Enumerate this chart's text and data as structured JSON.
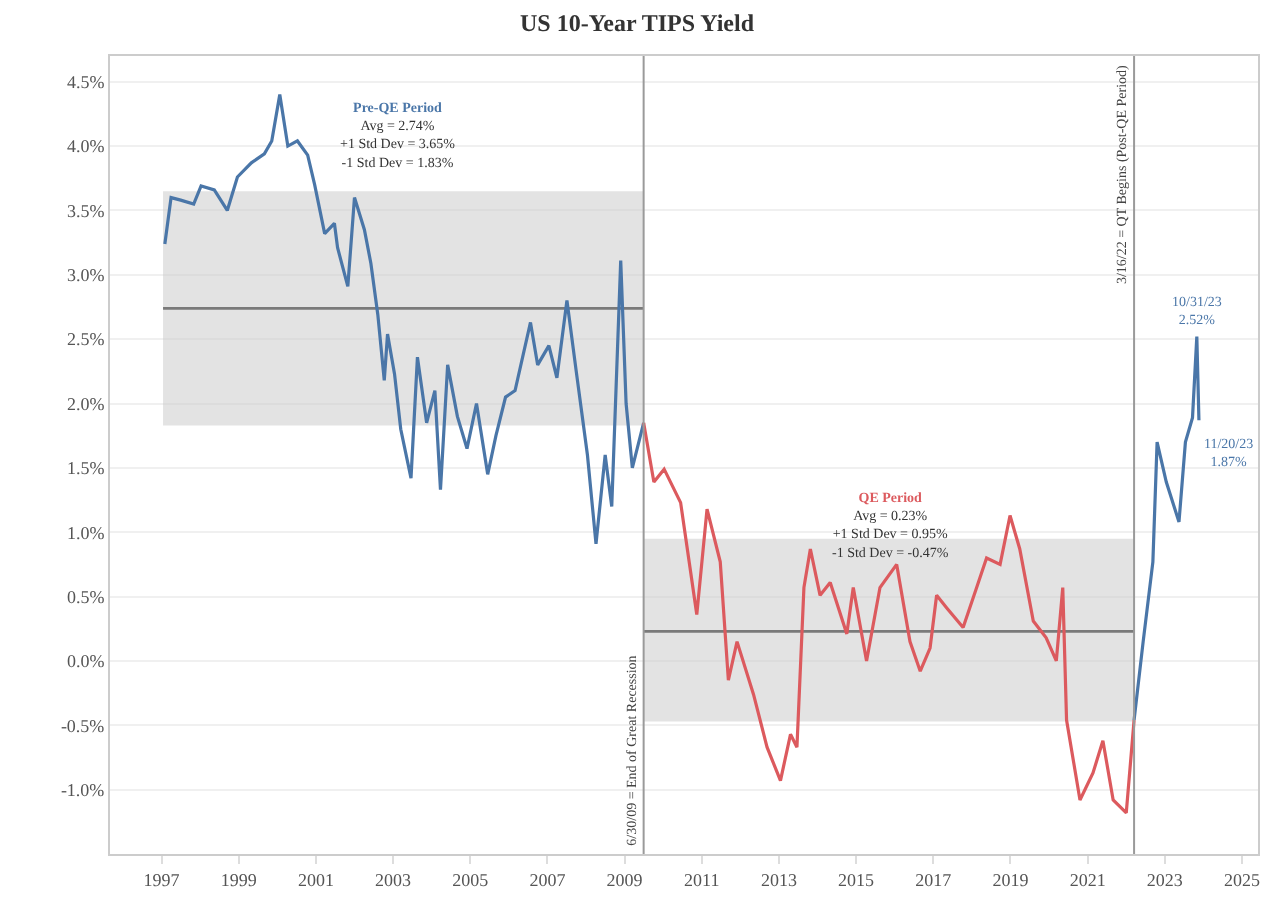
{
  "chart_data": {
    "type": "line",
    "title": "US 10-Year TIPS Yield",
    "series": [
      {
        "color": "#4a76a8",
        "x": [
          "1997-02-01",
          "1997-04-01",
          "1997-07-01",
          "1997-11-01",
          "1998-01-10",
          "1998-05-15",
          "1998-09-15",
          "1998-12-20",
          "1999-05-01",
          "1999-09-01",
          "1999-11-10",
          "2000-01-25",
          "2000-04-10",
          "2000-07-10",
          "2000-10-15",
          "2000-12-20",
          "2001-03-25",
          "2001-06-25",
          "2001-07-25",
          "2001-10-30",
          "2002-01-01",
          "2002-04-05",
          "2002-06-05",
          "2002-08-10",
          "2002-10-10",
          "2002-11-10",
          "2003-01-15",
          "2003-03-15",
          "2003-06-20",
          "2003-08-20",
          "2003-11-15",
          "2004-02-01",
          "2004-03-25",
          "2004-06-01",
          "2004-09-01",
          "2004-12-01",
          "2005-03-01",
          "2005-06-15",
          "2005-09-01",
          "2005-12-01",
          "2006-03-01",
          "2006-07-25",
          "2006-10-01",
          "2007-01-15",
          "2007-04-01",
          "2007-07-05",
          "2007-10-01",
          "2008-01-15",
          "2008-04-05",
          "2008-07-01",
          "2008-09-01",
          "2008-11-25",
          "2009-01-15",
          "2009-03-15",
          "2009-06-30"
        ],
        "values": [
          3.24,
          3.6,
          3.58,
          3.55,
          3.69,
          3.66,
          3.5,
          3.76,
          3.87,
          3.94,
          4.04,
          4.4,
          4.0,
          4.04,
          3.93,
          3.7,
          3.32,
          3.4,
          3.21,
          2.91,
          3.6,
          3.35,
          3.09,
          2.69,
          2.18,
          2.54,
          2.23,
          1.8,
          1.42,
          2.36,
          1.85,
          2.1,
          1.33,
          2.3,
          1.9,
          1.65,
          2.0,
          1.45,
          1.75,
          2.05,
          2.1,
          2.63,
          2.3,
          2.45,
          2.2,
          2.8,
          2.25,
          1.6,
          0.91,
          1.6,
          1.2,
          3.11,
          2.0,
          1.5,
          1.85
        ]
      },
      {
        "color": "#dc5a5e",
        "x": [
          "2009-06-30",
          "2009-10-05",
          "2010-01-10",
          "2010-06-15",
          "2010-11-15",
          "2011-02-20",
          "2011-06-25",
          "2011-09-10",
          "2011-12-01",
          "2012-05-05",
          "2012-09-10",
          "2013-01-15",
          "2013-04-20",
          "2013-06-20",
          "2013-08-25",
          "2013-10-25",
          "2014-01-25",
          "2014-05-01",
          "2014-10-05",
          "2014-12-05",
          "2015-04-10",
          "2015-08-15",
          "2016-01-20",
          "2016-05-25",
          "2016-08-30",
          "2016-12-01",
          "2017-02-01",
          "2017-05-10",
          "2017-10-10",
          "2018-02-15",
          "2018-05-20",
          "2018-09-25",
          "2018-12-28",
          "2019-03-30",
          "2019-08-05",
          "2019-12-05",
          "2020-03-10",
          "2020-05-10",
          "2020-06-15",
          "2020-10-20",
          "2021-02-20",
          "2021-05-25",
          "2021-08-30",
          "2022-01-01",
          "2022-03-16"
        ],
        "values": [
          1.85,
          1.39,
          1.49,
          1.23,
          0.36,
          1.18,
          0.77,
          -0.15,
          0.15,
          -0.26,
          -0.67,
          -0.93,
          -0.57,
          -0.67,
          0.57,
          0.87,
          0.51,
          0.61,
          0.21,
          0.57,
          0.0,
          0.57,
          0.75,
          0.15,
          -0.08,
          0.1,
          0.51,
          0.41,
          0.26,
          0.57,
          0.8,
          0.75,
          1.13,
          0.87,
          0.31,
          0.18,
          0.0,
          0.57,
          -0.46,
          -1.08,
          -0.87,
          -0.62,
          -1.08,
          -1.18,
          -0.46
        ]
      },
      {
        "color": "#4a76a8",
        "x": [
          "2022-03-16",
          "2022-06-10",
          "2022-09-10",
          "2022-10-20",
          "2023-01-15",
          "2023-05-15",
          "2023-07-15",
          "2023-09-20",
          "2023-10-31",
          "2023-11-20"
        ],
        "values": [
          -0.46,
          0.15,
          0.77,
          1.7,
          1.39,
          1.08,
          1.7,
          1.89,
          2.52,
          1.87
        ]
      },
      {
        "color": "#7a7a7a",
        "x": [
          "1997-01-15",
          "2009-06-30"
        ],
        "values": [
          2.74,
          2.74
        ],
        "lower": [
          1.83,
          1.83
        ],
        "upper": [
          3.65,
          3.65
        ]
      },
      {
        "color": "#7a7a7a",
        "x": [
          "2009-06-30",
          "2022-03-16"
        ],
        "values": [
          0.23,
          0.23
        ],
        "lower": [
          -0.47,
          -0.47
        ],
        "upper": [
          0.95,
          0.95
        ]
      }
    ],
    "ref_lines": [
      {
        "axis": "x",
        "value": "2009-06-30",
        "label": "6/30/09 = End of Great Recession",
        "color": "#9a9a9a"
      },
      {
        "axis": "x",
        "value": "2022-03-16",
        "label": "3/16/22 = QT Begins (Post-QE Period)",
        "color": "#9a9a9a"
      }
    ],
    "annotations": [
      "Pre-QE Period\nAvg = 2.74%\n+1 Std Dev = 3.65%\n-1 Std Dev = 1.83%",
      "QE Period\nAvg = 0.23%\n+1 Std Dev = 0.95%\n-1 Std Dev = -0.47%",
      {
        "text": "10/31/23\n2.52%",
        "x": "2023-10-31",
        "y": 2.52
      },
      {
        "text": "11/20/23\n1.87%",
        "x": "2023-11-20",
        "y": 1.87
      }
    ],
    "xlim": [
      "1995-09-01",
      "2025-06-01"
    ],
    "xticks": [
      {
        "value": "1997-01-01",
        "label": "1997"
      },
      {
        "value": "1999-01-01",
        "label": "1999"
      },
      {
        "value": "2001-01-01",
        "label": "2001"
      },
      {
        "value": "2003-01-01",
        "label": "2003"
      },
      {
        "value": "2005-01-01",
        "label": "2005"
      },
      {
        "value": "2007-01-01",
        "label": "2007"
      },
      {
        "value": "2009-01-01",
        "label": "2009"
      },
      {
        "value": "2011-01-01",
        "label": "2011"
      },
      {
        "value": "2013-01-01",
        "label": "2013"
      },
      {
        "value": "2015-01-01",
        "label": "2015"
      },
      {
        "value": "2017-01-01",
        "label": "2017"
      },
      {
        "value": "2019-01-01",
        "label": "2019"
      },
      {
        "value": "2021-01-01",
        "label": "2021"
      },
      {
        "value": "2023-01-01",
        "label": "2023"
      },
      {
        "value": "2025-01-01",
        "label": "2025"
      }
    ],
    "ylim": [
      -1.5,
      4.7
    ],
    "yticks": [
      {
        "value": -1.0,
        "label": "-1.0%"
      },
      {
        "value": -0.5,
        "label": "-0.5%"
      },
      {
        "value": 0.0,
        "label": "0.0%"
      },
      {
        "value": 0.5,
        "label": "0.5%"
      },
      {
        "value": 1.0,
        "label": "1.0%"
      },
      {
        "value": 1.5,
        "label": "1.5%"
      },
      {
        "value": 2.0,
        "label": "2.0%"
      },
      {
        "value": 2.5,
        "label": "2.5%"
      },
      {
        "value": 3.0,
        "label": "3.0%"
      },
      {
        "value": 3.5,
        "label": "3.5%"
      },
      {
        "value": 4.0,
        "label": "4.0%"
      },
      {
        "value": 4.5,
        "label": "4.5%"
      }
    ],
    "grid": "y",
    "line_style": "solid",
    "marker": "none"
  }
}
